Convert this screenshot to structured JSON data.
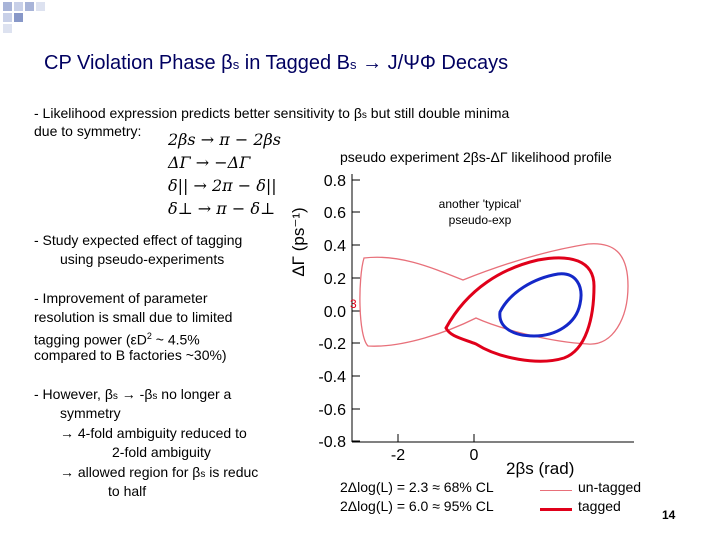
{
  "slide": {
    "title_main": "CP Violation Phase ",
    "title_beta": "β",
    "title_beta_sub": "s",
    "title_rest": " in Tagged B",
    "title_b_sub": "s",
    "title_tail": " → J/ΨΦ Decays",
    "page_number": "14"
  },
  "bullets": {
    "likelihood_1": "- Likelihood expression predicts better sensitivity to ",
    "likelihood_beta": "β",
    "likelihood_sub": "s",
    "likelihood_2": " but still double minima",
    "likelihood_3": "due to symmetry:",
    "study_1": "- Study expected effect of tagging",
    "study_2": "using pseudo-experiments",
    "improve_1": "- Improvement of parameter",
    "improve_2": "resolution is small due to limited",
    "improve_3": "tagging power (εD",
    "improve_3_sup": "2",
    "improve_3_end": " ~ 4.5%",
    "improve_4": "compared to B factories ~30%)",
    "however_1a": "- However, ",
    "however_beta1": "β",
    "however_sub1": "s",
    "however_arrow": " → -",
    "however_beta2": "β",
    "however_sub2": "s",
    "however_1b": " no longer a",
    "however_2": "symmetry",
    "however_3": "→ 4-fold ambiguity reduced to",
    "however_4": "2-fold ambiguity",
    "however_5a": "→ allowed region for ",
    "however_beta3": "β",
    "however_sub3": "s",
    "however_5b": " is reduc",
    "however_6": "to half"
  },
  "equations": {
    "line1": "2βs → π − 2βs",
    "line2": "ΔΓ → −ΔΓ",
    "line3": "δ|| → 2π − δ||",
    "line4": "δ⊥ → π − δ⊥"
  },
  "plot": {
    "caption": "pseudo experiment 2βs-ΔΓ likelihood profile",
    "annotation_line1": "another 'typical'",
    "annotation_line2": "pseudo-exp",
    "ylabel": "ΔΓ (ps⁻¹)",
    "xlabel": "2βs (rad)",
    "partial_label": "3",
    "colors": {
      "red": "#e0001a",
      "blue": "#1428c8",
      "light_red": "#e8707a"
    }
  },
  "chart_data": {
    "type": "contour",
    "xlabel": "2βs (rad)",
    "ylabel": "ΔΓ (ps⁻¹)",
    "x_ticks": [
      -2,
      0
    ],
    "y_ticks": [
      0.8,
      0.6,
      0.4,
      0.2,
      -0.0,
      -0.2,
      -0.4,
      -0.6,
      -0.8
    ],
    "ylim": [
      -0.8,
      0.8
    ],
    "series": [
      {
        "name": "un-tagged",
        "level": "68% CL"
      },
      {
        "name": "tagged",
        "level": "68% CL"
      },
      {
        "name": "tagged",
        "level": "95% CL"
      }
    ]
  },
  "legend": {
    "untagged_formula": "2Δlog(L) = 2.3 ≈ 68% CL",
    "tagged_formula": "2Δlog(L) = 6.0 ≈ 95% CL",
    "untagged_label": "un-tagged",
    "tagged_label": "tagged"
  }
}
